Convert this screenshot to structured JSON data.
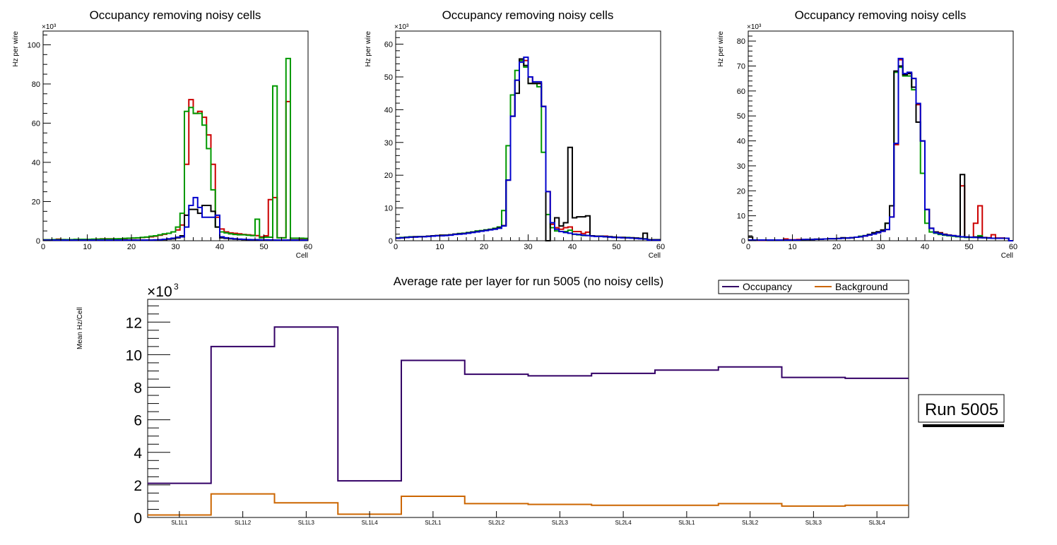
{
  "chart_data": [
    {
      "type": "line",
      "id": "panel-1",
      "style": "step-histogram",
      "title": "Occupancy removing noisy cells",
      "xlabel": "Cell",
      "ylabel": "Hz per wire",
      "y_multiplier": "×10³",
      "xlim": [
        0,
        60
      ],
      "ylim": [
        0,
        107
      ],
      "x_ticks": [
        0,
        10,
        20,
        30,
        40,
        50,
        60
      ],
      "y_ticks": [
        0,
        20,
        40,
        60,
        80,
        100
      ],
      "y_minor_step": 5,
      "x_minor_step": 2,
      "bin_width": 1,
      "series": [
        {
          "name": "red",
          "color": "#cc0000",
          "values": [
            0.5,
            0.5,
            0.5,
            0.8,
            0.6,
            0.5,
            0.5,
            0.6,
            0.6,
            0.6,
            0.7,
            0.7,
            0.8,
            1.0,
            1.0,
            1.0,
            0.9,
            1.0,
            1.0,
            1.2,
            1.3,
            1.4,
            1.6,
            1.8,
            2.0,
            2.3,
            2.8,
            3.3,
            3.8,
            4.5,
            5.5,
            8,
            39,
            72,
            65,
            66,
            63,
            54,
            39,
            12,
            6,
            4.5,
            4,
            3.8,
            3.5,
            3.2,
            3.0,
            2.8,
            2.6,
            2,
            2.5,
            21,
            22,
            1.5,
            1.5,
            71,
            1.2,
            1.2,
            1.1,
            1.1
          ]
        },
        {
          "name": "green",
          "color": "#009900",
          "values": [
            0.5,
            0.5,
            0.6,
            0.6,
            0.6,
            0.6,
            0.6,
            0.7,
            0.7,
            0.7,
            0.7,
            0.8,
            0.8,
            0.9,
            0.9,
            0.9,
            1.0,
            1.0,
            1.2,
            1.3,
            1.4,
            1.5,
            1.7,
            1.9,
            2.3,
            2.5,
            3.0,
            3.5,
            3.8,
            4.5,
            7,
            14,
            66,
            68,
            65,
            65,
            59,
            47,
            26,
            7,
            4.5,
            4,
            3.5,
            3.2,
            3.0,
            3.0,
            2.8,
            2.6,
            11,
            1.5,
            1.8,
            1.8,
            79,
            1.5,
            1.5,
            93,
            1.3,
            1.3,
            1.3,
            1.2
          ]
        },
        {
          "name": "black",
          "color": "#000000",
          "values": [
            0.2,
            0.2,
            0.2,
            0.2,
            0.2,
            0.2,
            0.2,
            0.2,
            0.2,
            0.2,
            0.2,
            0.2,
            0.2,
            0.2,
            0.2,
            0.2,
            0.2,
            0.2,
            0.2,
            0.2,
            0.3,
            0.3,
            0.3,
            0.3,
            0.3,
            0.4,
            0.5,
            0.6,
            0.8,
            1.0,
            1.5,
            2.5,
            13,
            16,
            16,
            14,
            18,
            18,
            15,
            7,
            1.5,
            1.2,
            1.0,
            0.8,
            0.7,
            0.6,
            0.5,
            0.5,
            0.5,
            0.4,
            0.4,
            0.3,
            0.3,
            0.3,
            0.3,
            0.3,
            0.3,
            0.3,
            0.2,
            0.2
          ]
        },
        {
          "name": "blue",
          "color": "#0000cc",
          "values": [
            0.3,
            0.3,
            0.3,
            0.3,
            0.3,
            0.3,
            0.3,
            0.3,
            0.3,
            0.3,
            0.3,
            0.3,
            0.3,
            0.3,
            0.3,
            0.3,
            0.3,
            0.3,
            0.3,
            0.3,
            0.3,
            0.3,
            0.3,
            0.3,
            0.3,
            0.4,
            0.5,
            0.7,
            1.0,
            1.3,
            1.8,
            2.0,
            7,
            18,
            22,
            17,
            12,
            12,
            12,
            13,
            2,
            1.5,
            1.2,
            1.0,
            0.8,
            0.7,
            0.6,
            0.5,
            0.5,
            0.4,
            0.4,
            0.4,
            0.3,
            0.3,
            0.3,
            0.3,
            0.3,
            0.3,
            0.3,
            0.3
          ]
        }
      ]
    },
    {
      "type": "line",
      "id": "panel-2",
      "style": "step-histogram",
      "title": "Occupancy removing noisy cells",
      "xlabel": "Cell",
      "ylabel": "Hz per wire",
      "y_multiplier": "×10³",
      "xlim": [
        0,
        60
      ],
      "ylim": [
        0,
        64
      ],
      "x_ticks": [
        0,
        10,
        20,
        30,
        40,
        50,
        60
      ],
      "y_ticks": [
        0,
        10,
        20,
        30,
        40,
        50,
        60
      ],
      "y_minor_step": 2,
      "x_minor_step": 2,
      "bin_width": 1,
      "series": [
        {
          "name": "red",
          "color": "#cc0000",
          "values": [
            0.8,
            0.9,
            1.0,
            1.1,
            1.2,
            1.2,
            1.3,
            1.4,
            1.5,
            1.5,
            1.6,
            1.7,
            1.8,
            2.0,
            2.1,
            2.2,
            2.4,
            2.6,
            2.8,
            3.0,
            3.2,
            3.4,
            3.6,
            4.0,
            4.6,
            18.5,
            38,
            49,
            55,
            55,
            50,
            48,
            48,
            41,
            15,
            5,
            4,
            3.5,
            4,
            4.2,
            2.8,
            2.8,
            2.2,
            2.6,
            1.5,
            1.4,
            1.4,
            1.4,
            1.2,
            1.1,
            1.0,
            1.0,
            0.9,
            0.9,
            0.8,
            0.7,
            0.6,
            0.3,
            0.3,
            0.3
          ]
        },
        {
          "name": "green",
          "color": "#009900",
          "values": [
            0.9,
            1.0,
            1.1,
            1.2,
            1.2,
            1.3,
            1.3,
            1.4,
            1.5,
            1.5,
            1.6,
            1.7,
            1.8,
            2.0,
            2.2,
            2.3,
            2.5,
            2.7,
            3.0,
            3.1,
            3.3,
            3.5,
            3.8,
            4.2,
            9.2,
            29,
            44.5,
            52,
            55,
            53,
            48,
            48,
            47,
            27,
            8,
            4,
            3,
            2.8,
            2.8,
            3.2,
            2.0,
            1.8,
            1.6,
            1.6,
            1.4,
            1.3,
            1.3,
            1.2,
            1.2,
            1.1,
            1.0,
            1.0,
            1.0,
            0.9,
            0.8,
            0.7,
            0.6,
            0.3,
            0.3,
            0.3
          ]
        },
        {
          "name": "black",
          "color": "#000000",
          "values": [
            0.8,
            0.9,
            1.0,
            1.1,
            1.2,
            1.2,
            1.3,
            1.4,
            1.5,
            1.6,
            1.7,
            1.7,
            1.8,
            2.0,
            2.1,
            2.2,
            2.4,
            2.6,
            2.8,
            3.0,
            3.2,
            3.4,
            3.6,
            4.0,
            4.6,
            18.5,
            38,
            45,
            55.5,
            53.5,
            48,
            48,
            48,
            41,
            0,
            5.5,
            7,
            4.5,
            5.5,
            28.5,
            7,
            7.3,
            7.3,
            7.6,
            1.5,
            1.4,
            1.4,
            1.3,
            1.2,
            1.1,
            1.0,
            1.0,
            0.9,
            0.9,
            0.8,
            0.7,
            2.3,
            0.3,
            0.3,
            0.3
          ]
        },
        {
          "name": "blue",
          "color": "#0000cc",
          "values": [
            0.8,
            0.9,
            1.0,
            1.1,
            1.1,
            1.2,
            1.2,
            1.3,
            1.4,
            1.5,
            1.5,
            1.6,
            1.7,
            1.9,
            2.0,
            2.1,
            2.3,
            2.5,
            2.7,
            2.9,
            3.1,
            3.3,
            3.5,
            3.8,
            4.5,
            18.5,
            38,
            49,
            54.5,
            56,
            50,
            48.5,
            48.5,
            41,
            15,
            5.5,
            3.5,
            2.8,
            2.5,
            2.3,
            2.0,
            1.9,
            1.7,
            1.6,
            1.4,
            1.3,
            1.3,
            1.2,
            1.1,
            1.0,
            1.0,
            0.9,
            0.9,
            0.8,
            0.7,
            0.6,
            0.5,
            0.2,
            0.2,
            0.2
          ]
        }
      ]
    },
    {
      "type": "line",
      "id": "panel-3",
      "style": "step-histogram",
      "title": "Occupancy removing noisy cells",
      "xlabel": "Cell",
      "ylabel": "Hz per wire",
      "y_multiplier": "×10³",
      "xlim": [
        0,
        60
      ],
      "ylim": [
        0,
        84
      ],
      "x_ticks": [
        0,
        10,
        20,
        30,
        40,
        50,
        60
      ],
      "y_ticks": [
        0,
        10,
        20,
        30,
        40,
        50,
        60,
        70,
        80
      ],
      "y_minor_step": 2,
      "x_minor_step": 2,
      "bin_width": 1,
      "series": [
        {
          "name": "red",
          "color": "#cc0000",
          "values": [
            0.3,
            0.3,
            0.2,
            0.2,
            0.3,
            0.3,
            0.3,
            0.3,
            0.7,
            0.4,
            0.4,
            0.5,
            0.5,
            0.5,
            0.5,
            0.6,
            0.6,
            0.7,
            0.8,
            0.8,
            0.9,
            1.0,
            1.1,
            1.2,
            1.4,
            1.6,
            1.9,
            2.3,
            2.7,
            3.2,
            3.8,
            4.5,
            9.5,
            38.5,
            72.5,
            66.5,
            67,
            65,
            54.5,
            40,
            12.5,
            5,
            3.5,
            3.2,
            2.6,
            2.3,
            2.0,
            1.8,
            22,
            1.5,
            1.4,
            7,
            14,
            1.3,
            1.2,
            2.4,
            1.1,
            1.1,
            1.0,
            0
          ]
        },
        {
          "name": "green",
          "color": "#009900",
          "values": [
            0.3,
            0.3,
            0.3,
            0.3,
            0.3,
            0.3,
            0.3,
            0.3,
            0.3,
            0.3,
            0.3,
            0.3,
            0.4,
            0.5,
            0.5,
            0.6,
            0.6,
            0.7,
            0.8,
            0.8,
            0.9,
            1.0,
            1.1,
            1.2,
            1.4,
            1.8,
            2.0,
            2.5,
            2.8,
            3.4,
            4.2,
            7,
            14,
            67.5,
            69.5,
            66,
            66,
            60.5,
            47.5,
            27,
            7,
            3.5,
            3,
            2.5,
            2.2,
            2.0,
            1.8,
            1.6,
            1.5,
            1.3,
            1.3,
            1.5,
            2.0,
            1.2,
            1.1,
            1.0,
            1.0,
            1.0,
            1.0,
            0
          ]
        },
        {
          "name": "black",
          "color": "#000000",
          "values": [
            1.5,
            0.3,
            0.3,
            0.3,
            0.3,
            0.3,
            0.3,
            0.3,
            0.3,
            0.3,
            0.3,
            0.3,
            0.4,
            0.5,
            0.5,
            0.6,
            0.6,
            0.7,
            0.8,
            0.8,
            0.9,
            1.2,
            1.1,
            1.2,
            1.4,
            1.6,
            2.0,
            2.5,
            3.2,
            3.6,
            4.3,
            7,
            14,
            68,
            70,
            66.5,
            67,
            61.5,
            47.5,
            40,
            12.5,
            5,
            3.5,
            3,
            2.5,
            2.2,
            2.0,
            1.8,
            26.5,
            1.5,
            1.4,
            1.5,
            1.5,
            1.2,
            1.1,
            1.0,
            1.0,
            1.0,
            1.0,
            0
          ]
        },
        {
          "name": "blue",
          "color": "#0000cc",
          "values": [
            0.3,
            0.3,
            0.3,
            0.3,
            0.3,
            0.3,
            0.3,
            0.3,
            0.3,
            0.3,
            0.3,
            0.3,
            0.5,
            0.5,
            0.5,
            0.6,
            0.6,
            0.7,
            0.8,
            0.8,
            0.9,
            1.0,
            1.1,
            1.2,
            1.4,
            1.6,
            1.9,
            2.3,
            2.7,
            3.2,
            3.8,
            4.5,
            9.5,
            39,
            73,
            67,
            67.5,
            65,
            55,
            40,
            12.5,
            5,
            3.2,
            2.8,
            2.4,
            2.2,
            2.0,
            1.8,
            1.6,
            1.5,
            1.4,
            1.3,
            1.2,
            1.2,
            1.1,
            1.0,
            1.0,
            1.0,
            1.0,
            0
          ]
        }
      ]
    },
    {
      "type": "line",
      "id": "panel-4",
      "style": "step-histogram",
      "title": "Average rate per layer for run 5005 (no noisy cells)",
      "xlabel": "",
      "ylabel": "Mean Hz/Cell",
      "y_multiplier": "×10³",
      "ylim": [
        0,
        13.4
      ],
      "y_ticks": [
        0,
        2,
        4,
        6,
        8,
        10,
        12
      ],
      "y_minor_step": 0.5,
      "categories": [
        "SL1L1",
        "SL1L2",
        "SL1L3",
        "SL1L4",
        "SL2L1",
        "SL2L2",
        "SL2L3",
        "SL2L4",
        "SL3L1",
        "SL3L2",
        "SL3L3",
        "SL3L4"
      ],
      "legend_position": "top-right",
      "series": [
        {
          "name": "Occupancy",
          "color": "#330066",
          "values": [
            2.1,
            10.5,
            11.7,
            2.25,
            9.65,
            8.8,
            8.7,
            8.85,
            9.05,
            9.25,
            8.6,
            8.55
          ]
        },
        {
          "name": "Background",
          "color": "#cc6600",
          "values": [
            0.15,
            1.45,
            0.9,
            0.2,
            1.3,
            0.85,
            0.8,
            0.75,
            0.75,
            0.85,
            0.7,
            0.75
          ]
        }
      ],
      "annotation": "Run 5005"
    }
  ]
}
